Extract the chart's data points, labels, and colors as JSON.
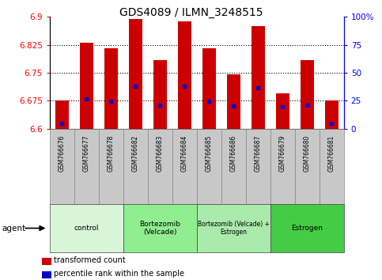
{
  "title": "GDS4089 / ILMN_3248515",
  "samples": [
    "GSM766676",
    "GSM766677",
    "GSM766678",
    "GSM766682",
    "GSM766683",
    "GSM766684",
    "GSM766685",
    "GSM766686",
    "GSM766687",
    "GSM766679",
    "GSM766680",
    "GSM766681"
  ],
  "bar_tops": [
    6.675,
    6.83,
    6.815,
    6.895,
    6.785,
    6.888,
    6.815,
    6.745,
    6.875,
    6.695,
    6.785,
    6.675
  ],
  "blue_dots": [
    6.614,
    6.68,
    6.674,
    6.714,
    6.664,
    6.714,
    6.674,
    6.661,
    6.71,
    6.66,
    6.664,
    6.614
  ],
  "bar_bottom": 6.6,
  "ylim_left": [
    6.6,
    6.9
  ],
  "ylim_right": [
    0,
    100
  ],
  "yticks_left": [
    6.6,
    6.675,
    6.75,
    6.825,
    6.9
  ],
  "yticks_right": [
    0,
    25,
    50,
    75,
    100
  ],
  "ytick_labels_left": [
    "6.6",
    "6.675",
    "6.75",
    "6.825",
    "6.9"
  ],
  "ytick_labels_right": [
    "0",
    "25",
    "50",
    "75",
    "100%"
  ],
  "group_configs": [
    {
      "label": "control",
      "start": 0,
      "end": 3,
      "color": "#d8f5d8"
    },
    {
      "label": "Bortezomib\n(Velcade)",
      "start": 3,
      "end": 6,
      "color": "#90ee90"
    },
    {
      "label": "Bortezomib (Velcade) +\nEstrogen",
      "start": 6,
      "end": 9,
      "color": "#aaeaaa"
    },
    {
      "label": "Estrogen",
      "start": 9,
      "end": 12,
      "color": "#44cc44"
    }
  ],
  "bar_color": "#cc0000",
  "dot_color": "#0000cc",
  "legend_items": [
    "transformed count",
    "percentile rank within the sample"
  ],
  "agent_label": "agent",
  "xtick_bg": "#c8c8c8",
  "plot_bg": "#ffffff",
  "gridline_color": "#000000"
}
